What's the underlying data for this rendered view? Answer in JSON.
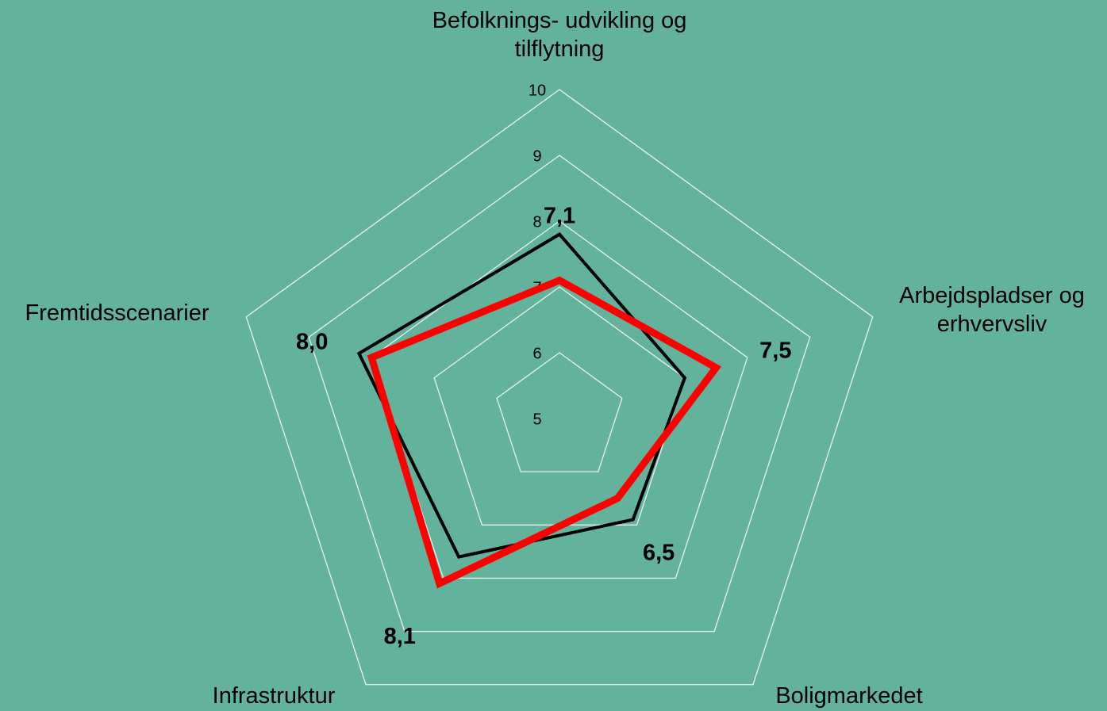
{
  "chart_data": {
    "type": "radar",
    "categories": [
      "Befolknings- udvikling og tilflytning",
      "Arbejdspladser og erhvervsliv",
      "Boligmarkedet",
      "Infrastruktur",
      "Fremtidsscenarier"
    ],
    "ylim": [
      5,
      10
    ],
    "yticks": [
      5,
      6,
      7,
      8,
      9,
      10
    ],
    "grid": true,
    "series": [
      {
        "color": "#000000",
        "values": [
          7.8,
          7.0,
          6.9,
          7.6,
          8.2
        ]
      },
      {
        "color": "#ff0000",
        "values": [
          7.1,
          7.5,
          6.5,
          8.1,
          8.0
        ],
        "value_labels": [
          "7,1",
          "7,5",
          "6,5",
          "8,1",
          "8,0"
        ]
      }
    ]
  }
}
